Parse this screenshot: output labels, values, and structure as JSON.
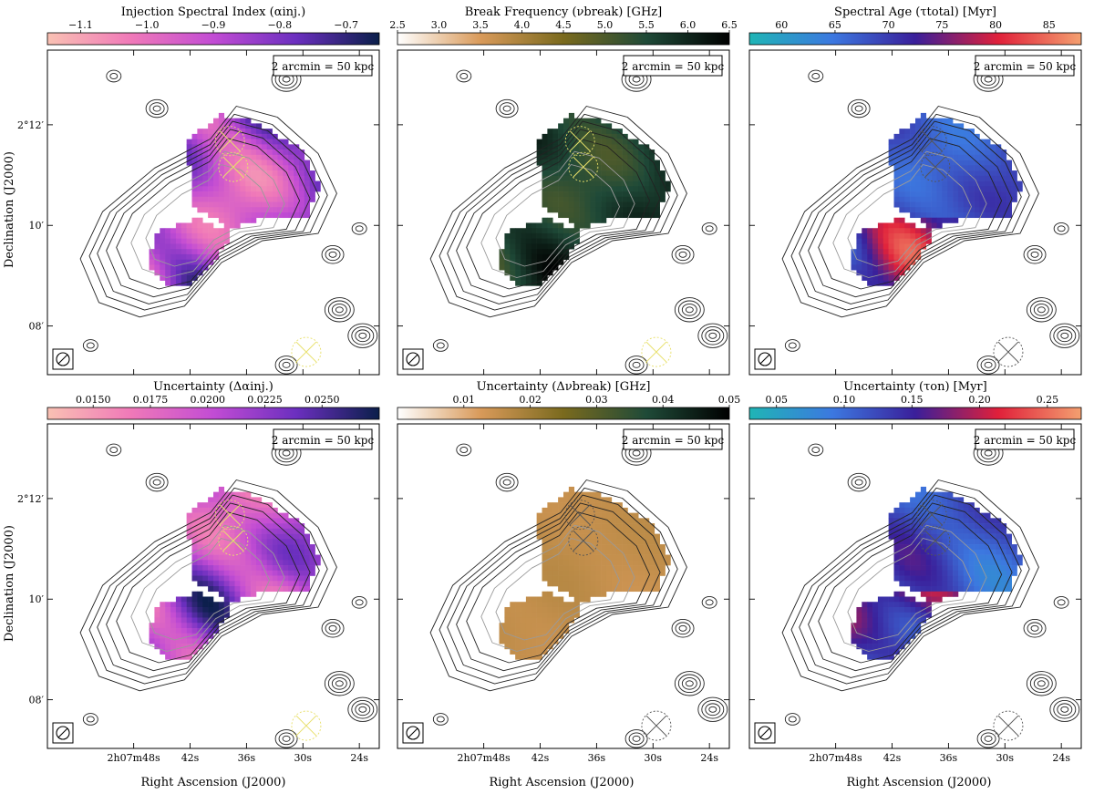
{
  "figure": {
    "x_axis_label": "Right Ascension (J2000)",
    "y_axis_label": "Declination (J2000)",
    "x_tick_labels": [
      "2h07m48s",
      "42s",
      "36s",
      "30s",
      "24s"
    ],
    "y_tick_labels": [
      "2°12′",
      "10′",
      "08′"
    ],
    "scale_bar": "2 arcmin = 50 kpc"
  },
  "chart_data": [
    {
      "type": "heatmap",
      "panel": "top-left",
      "colorbar_label": "Injection Spectral Index (αinj.)",
      "colorbar_range": [
        -1.15,
        -0.65
      ],
      "colorbar_ticks": [
        "-1.1",
        "-1.0",
        "-0.9",
        "-0.8",
        "-0.7"
      ],
      "colormap": [
        "#f9c1b3",
        "#f079b8",
        "#c24cd4",
        "#6b2fbf",
        "#0a1f4a"
      ],
      "marker_color": "#e8e06a"
    },
    {
      "type": "heatmap",
      "panel": "top-center",
      "colorbar_label": "Break Frequency (νbreak) [GHz]",
      "colorbar_range": [
        2.5,
        6.5
      ],
      "colorbar_ticks": [
        "2.5",
        "3.0",
        "3.5",
        "4.0",
        "4.5",
        "5.0",
        "5.5",
        "6.0",
        "6.5"
      ],
      "colormap": [
        "#ffffff",
        "#d99a5a",
        "#7a6a1e",
        "#1f4a38",
        "#000000"
      ],
      "marker_color": "#e8e06a"
    },
    {
      "type": "heatmap",
      "panel": "top-right",
      "colorbar_label": "Spectral Age (τtotal) [Myr]",
      "colorbar_range": [
        57,
        88
      ],
      "colorbar_ticks": [
        "60",
        "65",
        "70",
        "75",
        "80",
        "85"
      ],
      "colormap": [
        "#1fb5b5",
        "#3c78e0",
        "#3a1f9a",
        "#e0203a",
        "#f4a070"
      ],
      "marker_color": "#555555"
    },
    {
      "type": "heatmap",
      "panel": "bottom-left",
      "colorbar_label": "Uncertainty (Δαinj.)",
      "colorbar_range": [
        0.013,
        0.0275
      ],
      "colorbar_ticks": [
        "0.0150",
        "0.0175",
        "0.0200",
        "0.0225",
        "0.0250"
      ],
      "colormap": [
        "#f9c1b3",
        "#f079b8",
        "#c24cd4",
        "#6b2fbf",
        "#0a1f4a"
      ],
      "marker_color": "#e8e06a"
    },
    {
      "type": "heatmap",
      "panel": "bottom-center",
      "colorbar_label": "Uncertainty (Δνbreak) [GHz]",
      "colorbar_range": [
        0.0,
        0.05
      ],
      "colorbar_ticks": [
        "0.01",
        "0.02",
        "0.03",
        "0.04",
        "0.05"
      ],
      "colormap": [
        "#ffffff",
        "#d99a5a",
        "#7a6a1e",
        "#1f4a38",
        "#000000"
      ],
      "marker_color": "#555555"
    },
    {
      "type": "heatmap",
      "panel": "bottom-right",
      "colorbar_label": "Uncertainty (τon) [Myr]",
      "colorbar_range": [
        0.03,
        0.275
      ],
      "colorbar_ticks": [
        "0.05",
        "0.10",
        "0.15",
        "0.20",
        "0.25"
      ],
      "colormap": [
        "#1fb5b5",
        "#3c78e0",
        "#3a1f9a",
        "#e0203a",
        "#f4a070"
      ],
      "marker_color": "#555555"
    }
  ]
}
